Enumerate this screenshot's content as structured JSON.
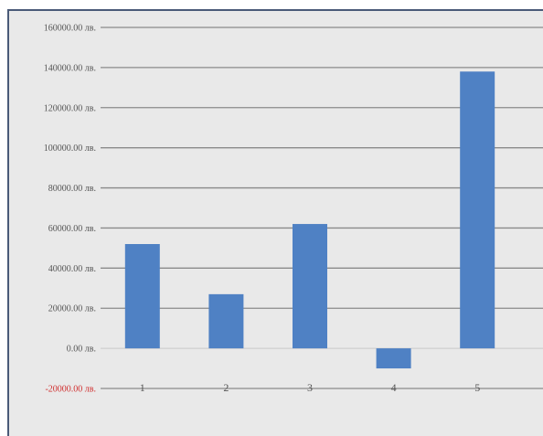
{
  "chart_data": {
    "type": "bar",
    "title": "",
    "xlabel": "",
    "ylabel": "",
    "categories": [
      "1",
      "2",
      "3",
      "4",
      "5"
    ],
    "values": [
      52000,
      27000,
      62000,
      -10000,
      138000
    ],
    "ylim": [
      -20000,
      160000
    ],
    "grid": true,
    "legend": "none",
    "yticks": [
      -20000,
      0,
      20000,
      40000,
      60000,
      80000,
      100000,
      120000,
      140000,
      160000
    ],
    "ytick_labels": [
      "-20000.00 лв.",
      "0.00 лв.",
      "20000.00 лв.",
      "40000.00 лв.",
      "60000.00 лв.",
      "80000.00 лв.",
      "100000.00 лв.",
      "120000.00 лв.",
      "140000.00 лв.",
      "160000.00 лв."
    ],
    "bar_color": "#4f81c4",
    "negative_label_color": "#d03030"
  }
}
